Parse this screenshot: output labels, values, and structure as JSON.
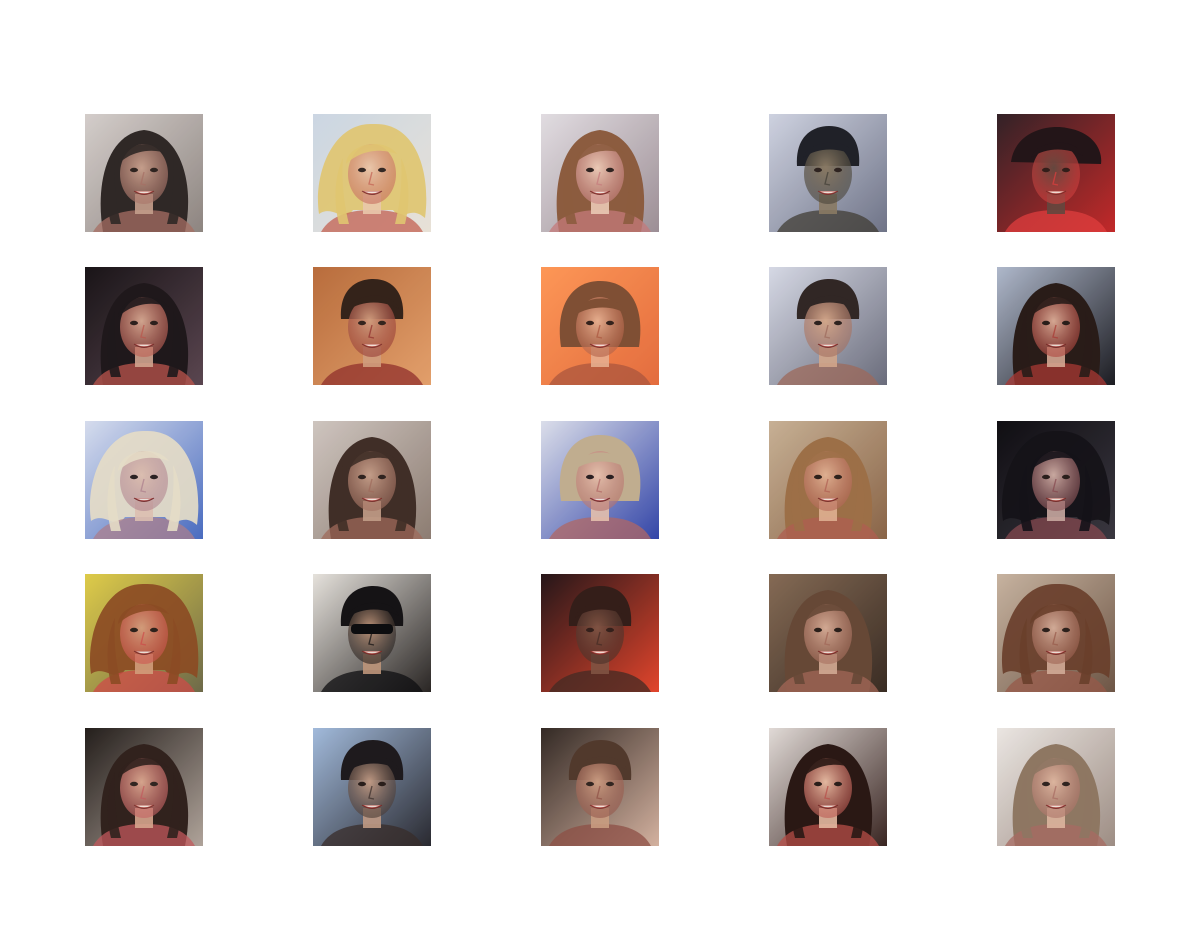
{
  "grid": {
    "rows": 5,
    "cols": 5,
    "tiles": [
      {
        "bg": [
          "#d9d2cf",
          "#8e8580"
        ],
        "hair": "#2a2220",
        "skin": "#c9a08c",
        "accent": "#a86e62",
        "style": "long"
      },
      {
        "bg": [
          "#c9d6e4",
          "#e8e2d6"
        ],
        "hair": "#e0c46a",
        "skin": "#e9c6a8",
        "accent": "#c05a4a",
        "style": "wild"
      },
      {
        "bg": [
          "#e6e2e6",
          "#9d8f95"
        ],
        "hair": "#8c5a3a",
        "skin": "#efcdb7",
        "accent": "#c7797a",
        "style": "long"
      },
      {
        "bg": [
          "#d4d8e6",
          "#6f7488"
        ],
        "hair": "#1b1c22",
        "skin": "#8b7a62",
        "accent": "#3d3a30",
        "style": "short"
      },
      {
        "bg": [
          "#2a2328",
          "#c32a2a"
        ],
        "hair": "#1a1518",
        "skin": "#5e4a40",
        "accent": "#e24040",
        "style": "cap"
      },
      {
        "bg": [
          "#161214",
          "#5b4650"
        ],
        "hair": "#1c1618",
        "skin": "#d8aa92",
        "accent": "#c2574c",
        "style": "long"
      },
      {
        "bg": [
          "#b66a3a",
          "#e3a06c"
        ],
        "hair": "#2a1c16",
        "skin": "#cf9d7f",
        "accent": "#8c2a2a",
        "style": "short"
      },
      {
        "bg": [
          "#ff9a58",
          "#e46d3e"
        ],
        "hair": "#7a4e34",
        "skin": "#e7b393",
        "accent": "#a8563e",
        "style": "bowl"
      },
      {
        "bg": [
          "#dde0ec",
          "#6b6d7c"
        ],
        "hair": "#2e2420",
        "skin": "#d8aa8c",
        "accent": "#a0695a",
        "style": "short"
      },
      {
        "bg": [
          "#b8c2d6",
          "#1c1c22"
        ],
        "hair": "#2a1c18",
        "skin": "#e0b09a",
        "accent": "#b23a34",
        "style": "long"
      },
      {
        "bg": [
          "#dfe4f0",
          "#4a6cc0"
        ],
        "hair": "#efe4c8",
        "skin": "#e5c4b0",
        "accent": "#b2808a",
        "style": "wild"
      },
      {
        "bg": [
          "#d3cac4",
          "#8d7d72"
        ],
        "hair": "#3c2a22",
        "skin": "#c7a08a",
        "accent": "#a06a5a",
        "style": "long"
      },
      {
        "bg": [
          "#e6e8ee",
          "#3446a8"
        ],
        "hair": "#c9b48e",
        "skin": "#f0c8ad",
        "accent": "#b86a60",
        "style": "bowl"
      },
      {
        "bg": [
          "#cbb59a",
          "#8a6548"
        ],
        "hair": "#9e7048",
        "skin": "#e4b596",
        "accent": "#b25e52",
        "style": "long"
      },
      {
        "bg": [
          "#0e0c10",
          "#3b3840"
        ],
        "hair": "#131116",
        "skin": "#d2b0a6",
        "accent": "#8a4a50",
        "style": "wild"
      },
      {
        "bg": [
          "#e6d24a",
          "#6e6a4a"
        ],
        "hair": "#8e4a22",
        "skin": "#d8a07e",
        "accent": "#d44a4a",
        "style": "wild"
      },
      {
        "bg": [
          "#f2eee8",
          "#2a2624"
        ],
        "hair": "#151315",
        "skin": "#c89c80",
        "accent": "#0e0e10",
        "style": "shades"
      },
      {
        "bg": [
          "#1a1418",
          "#e2452c"
        ],
        "hair": "#2a1c18",
        "skin": "#7a5444",
        "accent": "#3a2a24",
        "style": "short"
      },
      {
        "bg": [
          "#8a6e58",
          "#3a2c24"
        ],
        "hair": "#6a4a38",
        "skin": "#dcb09a",
        "accent": "#a86a5a",
        "style": "long"
      },
      {
        "bg": [
          "#cdb9a6",
          "#6e5646"
        ],
        "hair": "#6a3e2a",
        "skin": "#d8b09c",
        "accent": "#9a5a4a",
        "style": "wild"
      },
      {
        "bg": [
          "#1c1614",
          "#b0a39a"
        ],
        "hair": "#2a1a16",
        "skin": "#d8a48c",
        "accent": "#c4545a",
        "style": "long"
      },
      {
        "bg": [
          "#aac4e6",
          "#2a2a30"
        ],
        "hair": "#1e1a1c",
        "skin": "#caa28a",
        "accent": "#3a2e2a",
        "style": "short"
      },
      {
        "bg": [
          "#2a221e",
          "#d4b2a0"
        ],
        "hair": "#4a3226",
        "skin": "#c99b80",
        "accent": "#8a4a40",
        "style": "short"
      },
      {
        "bg": [
          "#ece6e2",
          "#3a2622"
        ],
        "hair": "#2a1814",
        "skin": "#eec2a8",
        "accent": "#c0504a",
        "style": "long"
      },
      {
        "bg": [
          "#f0ece8",
          "#9e8e84"
        ],
        "hair": "#8e7660",
        "skin": "#e0b8a0",
        "accent": "#a86a60",
        "style": "long"
      }
    ]
  }
}
